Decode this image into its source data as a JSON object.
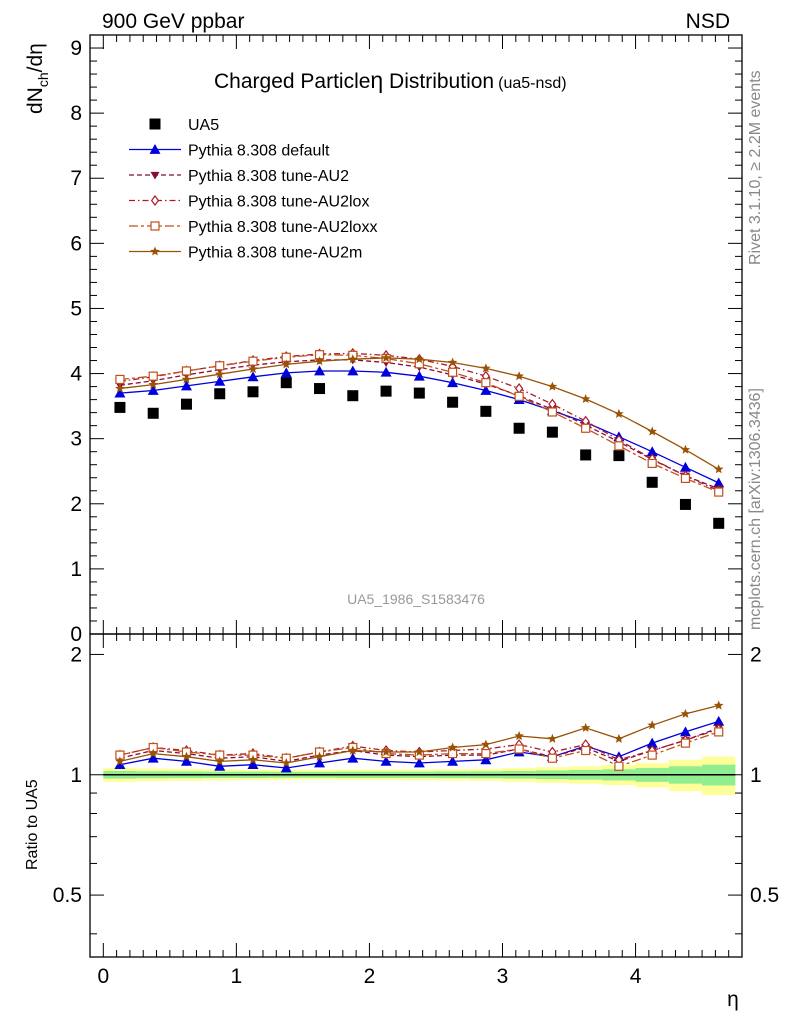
{
  "header": {
    "left": "900 GeV ppbar",
    "right": "NSD",
    "title": "Charged Particle",
    "title_symbol": "η",
    "title_rest": " Distribution",
    "title_tag": "(ua5-nsd)",
    "watermark": "UA5_1986_S1583476",
    "side_top": "Rivet 3.1.10, ≥ 2.2M events",
    "side_bottom": "mcplots.cern.ch [arXiv:1306.3436]"
  },
  "colors": {
    "data": "#000000",
    "default": "#0000dd",
    "au2": "#8b0a3c",
    "au2lox": "#aa1a2a",
    "au2loxx": "#c0501a",
    "au2m": "#9a5205",
    "band_inner": "#90ee90",
    "band_outer": "#ffff99"
  },
  "chart_data": [
    {
      "type": "line",
      "ylabel_main": "dN",
      "ylabel_sub": "ch",
      "ylabel_tail": "/dη",
      "xlim": [
        -0.1,
        4.8
      ],
      "ylim": [
        0,
        9.2
      ],
      "yticks": [
        0,
        1,
        2,
        3,
        4,
        5,
        6,
        7,
        8,
        9
      ],
      "legend_placement": "top-left",
      "x": [
        0.125,
        0.375,
        0.625,
        0.875,
        1.125,
        1.375,
        1.625,
        1.875,
        2.125,
        2.375,
        2.625,
        2.875,
        3.125,
        3.375,
        3.625,
        3.875,
        4.125,
        4.375,
        4.625
      ],
      "series": [
        {
          "key": "data",
          "name": "UA5",
          "marker": "square",
          "line": "none",
          "values": [
            3.48,
            3.39,
            3.53,
            3.69,
            3.72,
            3.86,
            3.77,
            3.66,
            3.73,
            3.7,
            3.56,
            3.42,
            3.16,
            3.1,
            2.75,
            2.74,
            2.33,
            1.99,
            1.7
          ]
        },
        {
          "key": "default",
          "name": "Pythia 8.308 default",
          "marker": "triangle",
          "line": "solid",
          "values": [
            3.7,
            3.74,
            3.81,
            3.88,
            3.95,
            4.01,
            4.04,
            4.04,
            4.02,
            3.96,
            3.86,
            3.74,
            3.6,
            3.43,
            3.25,
            3.03,
            2.8,
            2.56,
            2.32
          ]
        },
        {
          "key": "au2",
          "name": "Pythia 8.308 tune-AU2",
          "marker": "triangle-down",
          "line": "dashed",
          "values": [
            3.82,
            3.89,
            3.98,
            4.06,
            4.13,
            4.18,
            4.21,
            4.21,
            4.17,
            4.1,
            3.98,
            3.84,
            3.66,
            3.45,
            3.21,
            2.95,
            2.68,
            2.43,
            2.23
          ]
        },
        {
          "key": "au2lox",
          "name": "Pythia 8.308 tune-AU2lox",
          "marker": "diamond",
          "line": "dashdot",
          "values": [
            3.88,
            3.95,
            4.04,
            4.12,
            4.2,
            4.26,
            4.3,
            4.31,
            4.28,
            4.22,
            4.11,
            3.96,
            3.77,
            3.53,
            3.27,
            2.98,
            2.69,
            2.43,
            2.2
          ]
        },
        {
          "key": "au2loxx",
          "name": "Pythia 8.308 tune-AU2loxx",
          "marker": "square-open",
          "line": "longdash",
          "values": [
            3.91,
            3.96,
            4.04,
            4.12,
            4.19,
            4.25,
            4.29,
            4.28,
            4.23,
            4.15,
            4.02,
            3.86,
            3.65,
            3.41,
            3.16,
            2.89,
            2.62,
            2.39,
            2.18
          ]
        },
        {
          "key": "au2m",
          "name": "Pythia 8.308 tune-AU2m",
          "marker": "star",
          "line": "solid",
          "values": [
            3.77,
            3.83,
            3.91,
            3.99,
            4.07,
            4.14,
            4.19,
            4.22,
            4.24,
            4.22,
            4.17,
            4.08,
            3.96,
            3.8,
            3.61,
            3.38,
            3.11,
            2.83,
            2.53
          ]
        }
      ]
    },
    {
      "type": "line",
      "ylabel": "Ratio to UA5",
      "xlabel": "η",
      "xlim": [
        -0.1,
        4.8
      ],
      "ylim": [
        0.35,
        2.25
      ],
      "yticks": [
        0.5,
        1,
        2
      ],
      "ytick_labels": [
        "0.5",
        "1",
        "2"
      ],
      "xticks": [
        0,
        1,
        2,
        3,
        4
      ],
      "xtick_labels": [
        "0",
        "1",
        "2",
        "3",
        "4"
      ],
      "band_x": [
        0,
        0.25,
        0.5,
        0.75,
        1.0,
        1.25,
        1.5,
        1.75,
        2.0,
        2.25,
        2.5,
        2.75,
        3.0,
        3.25,
        3.5,
        3.75,
        4.0,
        4.25,
        4.5,
        4.75
      ],
      "band_inner": [
        0.022,
        0.02,
        0.019,
        0.018,
        0.018,
        0.017,
        0.017,
        0.018,
        0.018,
        0.018,
        0.019,
        0.02,
        0.022,
        0.025,
        0.028,
        0.032,
        0.04,
        0.05,
        0.06
      ],
      "band_outer": [
        0.04,
        0.036,
        0.034,
        0.032,
        0.03,
        0.029,
        0.029,
        0.03,
        0.03,
        0.031,
        0.032,
        0.034,
        0.04,
        0.045,
        0.05,
        0.058,
        0.07,
        0.09,
        0.11
      ],
      "series": [
        {
          "key": "default",
          "name": "Pythia 8.308 default",
          "values": [
            1.06,
            1.1,
            1.08,
            1.05,
            1.06,
            1.04,
            1.07,
            1.1,
            1.08,
            1.07,
            1.08,
            1.09,
            1.14,
            1.11,
            1.18,
            1.11,
            1.2,
            1.28,
            1.36
          ]
        },
        {
          "key": "au2",
          "name": "Pythia 8.308 tune-AU2",
          "values": [
            1.1,
            1.15,
            1.13,
            1.1,
            1.11,
            1.08,
            1.12,
            1.15,
            1.12,
            1.11,
            1.12,
            1.12,
            1.16,
            1.11,
            1.17,
            1.08,
            1.15,
            1.22,
            1.31
          ]
        },
        {
          "key": "au2lox",
          "name": "Pythia 8.308 tune-AU2lox",
          "values": [
            1.12,
            1.17,
            1.15,
            1.12,
            1.13,
            1.1,
            1.14,
            1.18,
            1.15,
            1.14,
            1.15,
            1.16,
            1.19,
            1.14,
            1.19,
            1.09,
            1.15,
            1.22,
            1.3
          ]
        },
        {
          "key": "au2loxx",
          "name": "Pythia 8.308 tune-AU2loxx",
          "values": [
            1.12,
            1.17,
            1.14,
            1.12,
            1.12,
            1.1,
            1.14,
            1.17,
            1.13,
            1.12,
            1.13,
            1.13,
            1.16,
            1.1,
            1.15,
            1.05,
            1.12,
            1.2,
            1.28
          ]
        },
        {
          "key": "au2m",
          "name": "Pythia 8.308 tune-AU2m",
          "values": [
            1.08,
            1.13,
            1.11,
            1.08,
            1.09,
            1.07,
            1.11,
            1.15,
            1.14,
            1.14,
            1.17,
            1.19,
            1.25,
            1.23,
            1.31,
            1.23,
            1.33,
            1.42,
            1.49
          ]
        }
      ]
    }
  ]
}
